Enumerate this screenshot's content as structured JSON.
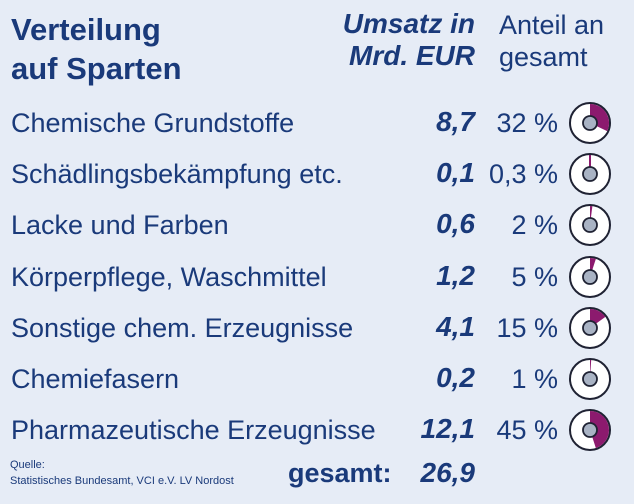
{
  "title_line1": "Verteilung",
  "title_line2": "auf Sparten",
  "col_value_line1": "Umsatz in",
  "col_value_line2": "Mrd. EUR",
  "col_share_line1": "Anteil an",
  "col_share_line2": "gesamt",
  "colors": {
    "text": "#1a3a7a",
    "background": "#e6ecf6",
    "pie_fill": "#8c1a6e",
    "pie_ring": "#ffffff",
    "pie_outline": "#1f2233",
    "pie_center": "#a9b3c4"
  },
  "source_line1": "Quelle:",
  "source_line2": "Statistisches Bundesamt, VCI e.V. LV Nordost",
  "total_label": "gesamt:",
  "total_value": "26,9",
  "chart_data": {
    "type": "table",
    "rows": [
      {
        "label": "Chemische Grundstoffe",
        "value": 8.7,
        "value_text": "8,7",
        "share": 32,
        "share_text": "32 %"
      },
      {
        "label": "Schädlingsbekämpfung etc.",
        "value": 0.1,
        "value_text": "0,1",
        "share": 0.3,
        "share_text": "0,3 %"
      },
      {
        "label": "Lacke und Farben",
        "value": 0.6,
        "value_text": "0,6",
        "share": 2,
        "share_text": "2 %"
      },
      {
        "label": "Körperpflege, Waschmittel",
        "value": 1.2,
        "value_text": "1,2",
        "share": 5,
        "share_text": "5 %"
      },
      {
        "label": "Sonstige chem. Erzeugnisse",
        "value": 4.1,
        "value_text": "4,1",
        "share": 15,
        "share_text": "15 %"
      },
      {
        "label": "Chemiefasern",
        "value": 0.2,
        "value_text": "0,2",
        "share": 1,
        "share_text": "1 %"
      },
      {
        "label": "Pharmazeutische Erzeugnisse",
        "value": 12.1,
        "value_text": "12,1",
        "share": 45,
        "share_text": "45 %"
      }
    ]
  }
}
